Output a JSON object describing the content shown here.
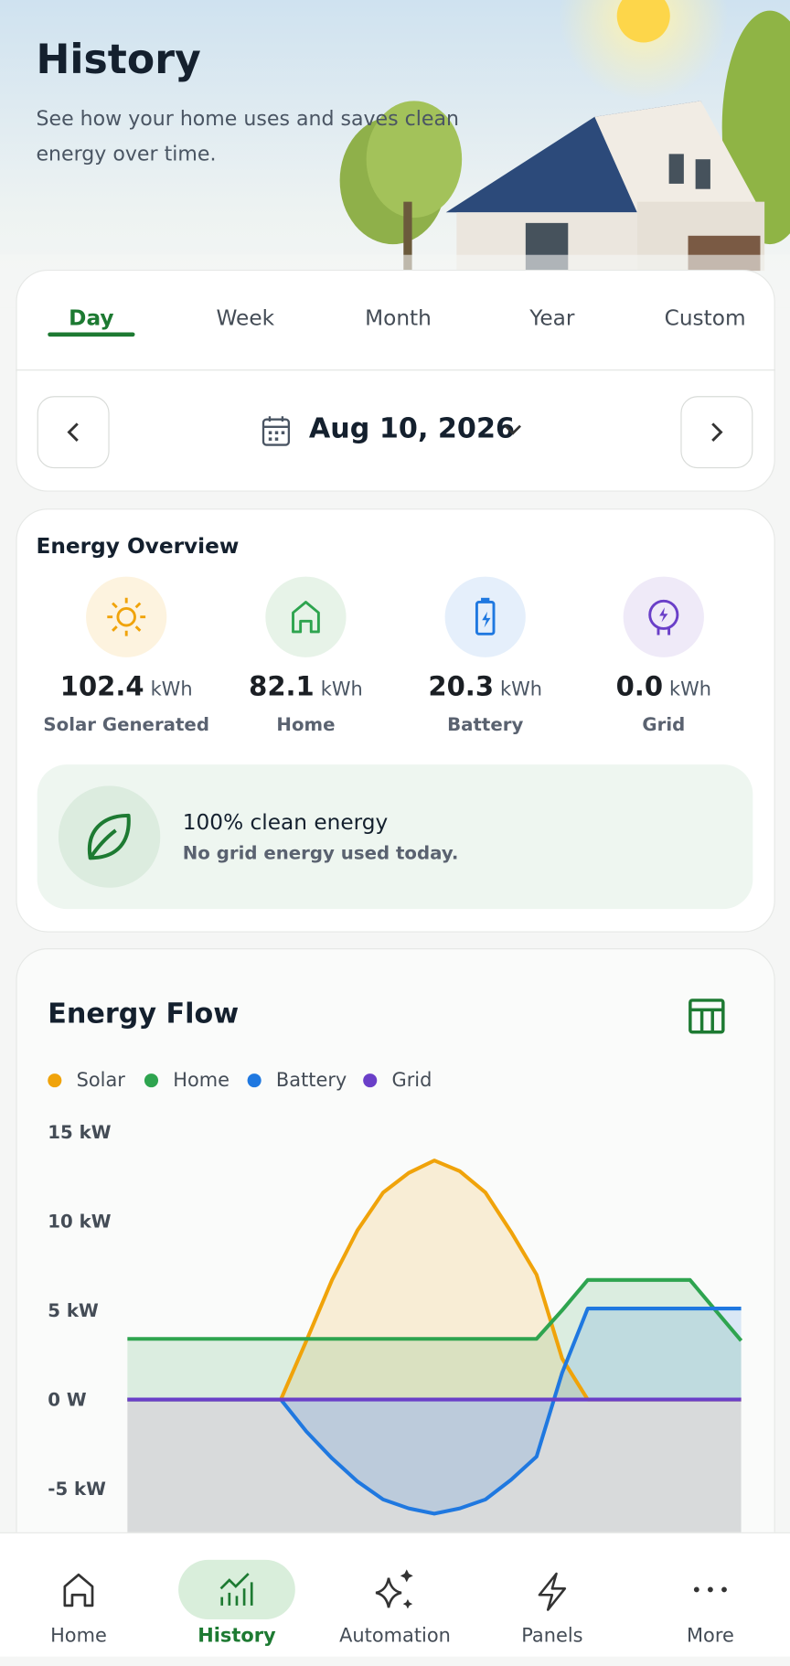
{
  "header": {
    "title": "History",
    "subtitle": "See how your home uses and saves clean energy over time."
  },
  "tabs": {
    "items": [
      "Day",
      "Week",
      "Month",
      "Year",
      "Custom"
    ],
    "active_index": 0
  },
  "date": "Aug 10, 2026",
  "overview": {
    "title": "Energy Overview",
    "unit": "kWh",
    "items": [
      {
        "value": "102.4",
        "label": "Solar Generated"
      },
      {
        "value": "82.1",
        "label": "Home"
      },
      {
        "value": "20.3",
        "label": "Battery"
      },
      {
        "value": "0.0",
        "label": "Grid"
      }
    ]
  },
  "clean_energy": {
    "title": "100% clean energy",
    "text": "No grid energy used today."
  },
  "chart_data": {
    "type": "line",
    "title": "Energy Flow",
    "categories": [
      null,
      null,
      null,
      null,
      null,
      null,
      null,
      null,
      null,
      null,
      null,
      null,
      null,
      null,
      null,
      null,
      null,
      null,
      null,
      null,
      null,
      null,
      null,
      null,
      null
    ],
    "series": [
      {
        "name": "Solar",
        "color": "#f0a30a",
        "values": [
          0,
          0,
          0,
          0,
          0,
          0,
          0,
          3.3,
          6.7,
          9.5,
          11.6,
          12.7,
          13.4,
          12.8,
          11.6,
          9.4,
          7.0,
          2.3,
          0,
          0,
          0,
          0,
          0,
          0,
          0
        ]
      },
      {
        "name": "Home",
        "color": "#2ea44f",
        "values": [
          3.4,
          3.4,
          3.4,
          3.4,
          3.4,
          3.4,
          3.4,
          3.4,
          3.4,
          3.4,
          3.4,
          3.4,
          3.4,
          3.4,
          3.4,
          3.4,
          3.4,
          5.0,
          6.7,
          6.7,
          6.7,
          6.7,
          6.7,
          5.0,
          3.3
        ]
      },
      {
        "name": "Battery",
        "color": "#1f78e0",
        "values": [
          0,
          0,
          0,
          0,
          0,
          0,
          0,
          -1.8,
          -3.3,
          -4.6,
          -5.6,
          -6.1,
          -6.4,
          -6.1,
          -5.6,
          -4.5,
          -3.2,
          1.5,
          5.1,
          5.1,
          5.1,
          5.1,
          5.1,
          5.1,
          5.1
        ]
      },
      {
        "name": "Grid",
        "color": "#6a3fc8",
        "values": [
          0,
          0,
          0,
          0,
          0,
          0,
          0,
          0,
          0,
          0,
          0,
          0,
          0,
          0,
          0,
          0,
          0,
          0,
          0,
          0,
          0,
          0,
          0,
          0,
          0
        ]
      }
    ],
    "ylim": [
      -7.5,
      16
    ],
    "yticks": [
      {
        "value": -5,
        "label": "-5 kW"
      },
      {
        "value": 0,
        "label": "0 W"
      },
      {
        "value": 5,
        "label": "5 kW"
      },
      {
        "value": 10,
        "label": "10 kW"
      },
      {
        "value": 15,
        "label": "15 kW"
      }
    ]
  },
  "nav": {
    "items": [
      "Home",
      "History",
      "Automation",
      "Panels",
      "More"
    ],
    "active_index": 1
  }
}
